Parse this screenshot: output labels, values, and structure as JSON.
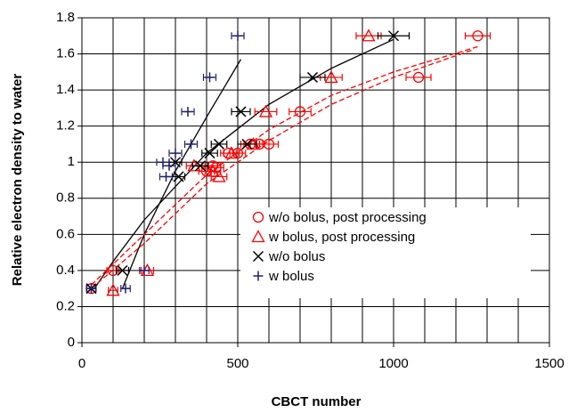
{
  "chart_data": {
    "type": "scatter",
    "xlabel": "CBCT number",
    "ylabel": "Relative electron density to water",
    "xlim": [
      0,
      1500
    ],
    "ylim": [
      0,
      1.8
    ],
    "xticks": [
      0,
      500,
      1000,
      1500
    ],
    "yticks": [
      0,
      0.2,
      0.4,
      0.6,
      0.8,
      1,
      1.2,
      1.4,
      1.6,
      1.8
    ],
    "x_gridlines": [
      0,
      100,
      200,
      300,
      400,
      500,
      600,
      700,
      800,
      900,
      1000,
      1100,
      1200,
      1300,
      1400,
      1500
    ],
    "grid": true,
    "series": [
      {
        "name": "w/o bolus, post processing",
        "marker": "circle",
        "color": "#ff0000",
        "x": [
          1270,
          1080,
          700,
          600,
          570,
          540,
          500,
          470,
          430,
          420,
          400,
          100,
          30
        ],
        "values": [
          1.7,
          1.47,
          1.28,
          1.1,
          1.1,
          1.1,
          1.05,
          1.05,
          0.97,
          0.98,
          0.95,
          0.4,
          0.3
        ],
        "errors": [
          40,
          40,
          35,
          30,
          30,
          30,
          25,
          25,
          25,
          25,
          25,
          20,
          15
        ]
      },
      {
        "name": "w bolus, post processing",
        "marker": "triangle",
        "color": "#ff0000",
        "x": [
          920,
          800,
          590,
          550,
          480,
          440,
          420,
          360,
          210,
          100
        ],
        "values": [
          1.7,
          1.47,
          1.28,
          1.1,
          1.05,
          0.92,
          0.95,
          0.98,
          0.4,
          0.29
        ],
        "errors": [
          40,
          35,
          35,
          30,
          25,
          25,
          25,
          25,
          20,
          15
        ]
      },
      {
        "name": "w/o bolus",
        "marker": "x",
        "color": "#000000",
        "x": [
          1000,
          740,
          510,
          530,
          440,
          410,
          380,
          300,
          310,
          130,
          30
        ],
        "values": [
          1.7,
          1.47,
          1.28,
          1.1,
          1.1,
          1.05,
          0.98,
          1.0,
          0.92,
          0.4,
          0.3
        ],
        "errors": [
          50,
          40,
          30,
          30,
          25,
          25,
          25,
          20,
          20,
          20,
          15
        ]
      },
      {
        "name": "w bolus",
        "marker": "plus",
        "color": "#1f1f6e",
        "x": [
          500,
          410,
          340,
          350,
          300,
          260,
          280,
          270,
          200,
          140,
          30
        ],
        "values": [
          1.7,
          1.47,
          1.28,
          1.1,
          1.05,
          1.0,
          0.98,
          0.92,
          0.4,
          0.3,
          0.3
        ],
        "errors": [
          20,
          20,
          20,
          20,
          20,
          20,
          20,
          20,
          15,
          15,
          15
        ]
      }
    ],
    "trendlines": [
      {
        "color": "#000000",
        "dash": false,
        "x": [
          130,
          200,
          300,
          400,
          510
        ],
        "y": [
          0.3,
          0.6,
          0.95,
          1.25,
          1.57
        ]
      },
      {
        "color": "#000000",
        "dash": false,
        "x": [
          40,
          100,
          200,
          400,
          600,
          800,
          1000
        ],
        "y": [
          0.3,
          0.45,
          0.68,
          1.05,
          1.32,
          1.52,
          1.68
        ]
      },
      {
        "color": "#ff0000",
        "dash": true,
        "x": [
          30,
          200,
          400,
          600,
          800,
          1000,
          1270
        ],
        "y": [
          0.32,
          0.6,
          0.93,
          1.18,
          1.37,
          1.5,
          1.64
        ]
      },
      {
        "color": "#ff0000",
        "dash": true,
        "x": [
          30,
          200,
          400,
          600,
          800,
          1000,
          1250
        ],
        "y": [
          0.3,
          0.55,
          0.88,
          1.12,
          1.32,
          1.47,
          1.62
        ]
      }
    ]
  }
}
